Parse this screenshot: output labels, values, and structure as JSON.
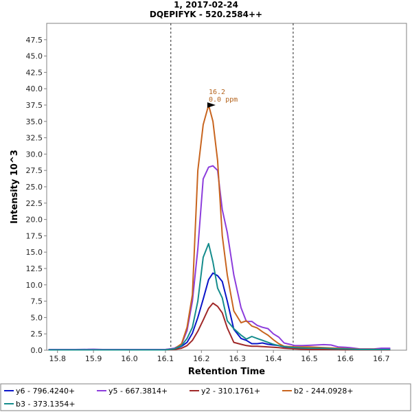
{
  "chart_data": {
    "type": "line",
    "title": "1, 2017-02-24",
    "subtitle": "DQEPIFYK - 520.2584++",
    "xlabel": "Retention Time",
    "ylabel": "Intensity 10^3",
    "xlim": [
      15.77,
      16.77
    ],
    "ylim": [
      0,
      50
    ],
    "x_ticks": [
      "15.8",
      "15.9",
      "16.0",
      "16.1",
      "16.2",
      "16.3",
      "16.4",
      "16.5",
      "16.6",
      "16.7"
    ],
    "y_ticks": [
      "0.0",
      "2.5",
      "5.0",
      "7.5",
      "10.0",
      "12.5",
      "15.0",
      "17.5",
      "20.0",
      "22.5",
      "25.0",
      "27.5",
      "30.0",
      "32.5",
      "35.0",
      "37.5",
      "40.0",
      "42.5",
      "45.0",
      "47.5"
    ],
    "integration_bounds": [
      16.115,
      16.455
    ],
    "peak_annotation": {
      "x": 16.245,
      "y": 37.5,
      "rt_label": "16.2",
      "ppm_label": "0.0 ppm"
    },
    "x": [
      15.775,
      15.8,
      15.825,
      15.85,
      15.875,
      15.9,
      15.925,
      15.95,
      15.975,
      16.0,
      16.025,
      16.05,
      16.075,
      16.1,
      16.125,
      16.145,
      16.16,
      16.175,
      16.19,
      16.205,
      16.22,
      16.232,
      16.245,
      16.258,
      16.272,
      16.29,
      16.31,
      16.325,
      16.34,
      16.355,
      16.37,
      16.385,
      16.4,
      16.415,
      16.43,
      16.445,
      16.46,
      16.48,
      16.5,
      16.52,
      16.54,
      16.56,
      16.58,
      16.6,
      16.62,
      16.64,
      16.66,
      16.68,
      16.7,
      16.725
    ],
    "series": [
      {
        "name": "y6 - 796.4240+",
        "color": "#0a14c8",
        "values": [
          0.1,
          0.1,
          0.1,
          0.1,
          0.12,
          0.1,
          0.1,
          0.1,
          0.1,
          0.1,
          0.1,
          0.1,
          0.1,
          0.1,
          0.2,
          0.6,
          1.2,
          2.6,
          5.0,
          7.8,
          10.8,
          11.8,
          11.4,
          10.5,
          7.5,
          3.2,
          1.8,
          1.5,
          1.0,
          1.0,
          1.1,
          0.9,
          0.8,
          0.7,
          0.5,
          0.4,
          0.3,
          0.25,
          0.2,
          0.2,
          0.2,
          0.25,
          0.2,
          0.2,
          0.15,
          0.1,
          0.1,
          0.1,
          0.15,
          0.2
        ]
      },
      {
        "name": "y5 - 667.3814+",
        "color": "#8c3cdc",
        "values": [
          0.1,
          0.1,
          0.1,
          0.1,
          0.1,
          0.15,
          0.1,
          0.1,
          0.1,
          0.1,
          0.1,
          0.1,
          0.1,
          0.1,
          0.3,
          0.9,
          3.0,
          7.5,
          15.5,
          26.2,
          28.0,
          28.2,
          27.5,
          21.5,
          18.0,
          11.5,
          6.5,
          4.4,
          4.4,
          3.8,
          3.5,
          3.3,
          2.5,
          2.0,
          1.1,
          0.9,
          0.7,
          0.7,
          0.75,
          0.8,
          0.85,
          0.8,
          0.5,
          0.45,
          0.35,
          0.2,
          0.2,
          0.2,
          0.3,
          0.3
        ]
      },
      {
        "name": "y2 - 310.1761+",
        "color": "#a02828",
        "values": [
          0.05,
          0.05,
          0.05,
          0.05,
          0.05,
          0.05,
          0.05,
          0.05,
          0.05,
          0.05,
          0.05,
          0.05,
          0.05,
          0.05,
          0.1,
          0.3,
          0.7,
          1.5,
          2.9,
          4.6,
          6.4,
          7.2,
          6.7,
          5.7,
          3.4,
          1.2,
          0.9,
          0.7,
          0.6,
          0.6,
          0.55,
          0.5,
          0.45,
          0.4,
          0.3,
          0.25,
          0.2,
          0.15,
          0.1,
          0.1,
          0.1,
          0.1,
          0.1,
          0.08,
          0.08,
          0.05,
          0.05,
          0.05,
          0.05,
          0.05
        ]
      },
      {
        "name": "b2 - 244.0928+",
        "color": "#c8641e",
        "values": [
          0.05,
          0.05,
          0.05,
          0.05,
          0.05,
          0.05,
          0.05,
          0.05,
          0.05,
          0.05,
          0.05,
          0.05,
          0.05,
          0.05,
          0.2,
          1.0,
          3.5,
          8.5,
          27.5,
          34.5,
          37.5,
          35.0,
          29.0,
          17.5,
          11.5,
          6.0,
          4.2,
          4.5,
          3.7,
          3.4,
          2.8,
          2.3,
          1.6,
          1.0,
          0.6,
          0.55,
          0.5,
          0.5,
          0.5,
          0.45,
          0.4,
          0.35,
          0.3,
          0.25,
          0.2,
          0.15,
          0.15,
          0.15,
          0.1,
          0.1
        ]
      },
      {
        "name": "b3 - 373.1354+",
        "color": "#148c8c",
        "values": [
          0.05,
          0.05,
          0.05,
          0.05,
          0.05,
          0.05,
          0.05,
          0.05,
          0.05,
          0.05,
          0.05,
          0.05,
          0.05,
          0.05,
          0.2,
          0.7,
          1.8,
          3.5,
          7.5,
          14.2,
          16.3,
          13.5,
          9.5,
          8.0,
          4.5,
          3.3,
          2.3,
          1.7,
          2.1,
          1.8,
          1.5,
          1.2,
          0.9,
          0.7,
          0.55,
          0.45,
          0.4,
          0.35,
          0.3,
          0.3,
          0.3,
          0.25,
          0.2,
          0.2,
          0.15,
          0.1,
          0.1,
          0.1,
          0.1,
          0.1
        ]
      }
    ]
  }
}
